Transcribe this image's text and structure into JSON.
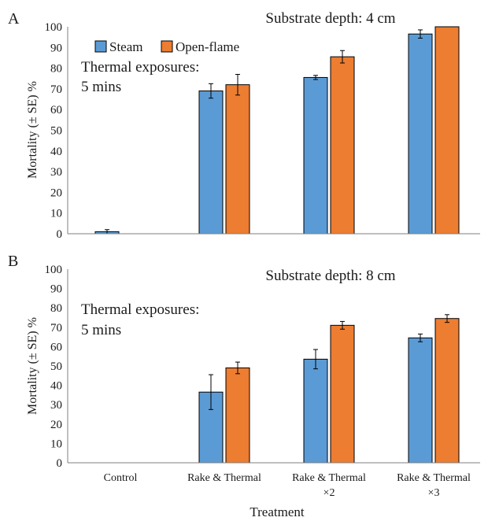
{
  "colors": {
    "steam": "#5B9BD5",
    "open_flame": "#ED7D31",
    "axis": "#7f7f7f",
    "bar_edge": "#000000"
  },
  "legend": {
    "steam": "Steam",
    "open_flame": "Open-flame"
  },
  "xlabel": "Treatment",
  "categories": [
    {
      "line1": "Control",
      "line2": ""
    },
    {
      "line1": "Rake & Thermal",
      "line2": ""
    },
    {
      "line1": "Rake & Thermal",
      "line2": "×2"
    },
    {
      "line1": "Rake & Thermal",
      "line2": "×3"
    }
  ],
  "chart_data": [
    {
      "type": "bar",
      "panel": "A",
      "subtitle": "Substrate depth: 4 cm",
      "note_line1": "Thermal exposures:",
      "note_line2": "5 mins",
      "ylabel": "Mortality (± SE) %",
      "ylim": [
        0,
        100
      ],
      "yticks": [
        "0",
        "10",
        "20",
        "30",
        "40",
        "50",
        "60",
        "70",
        "80",
        "90",
        "100"
      ],
      "categories": [
        "Control",
        "Rake & Thermal",
        "Rake & Thermal ×2",
        "Rake & Thermal ×3"
      ],
      "series": [
        {
          "name": "Steam",
          "values": [
            1,
            69,
            75.5,
            96.5
          ],
          "errors": [
            1,
            3.5,
            1,
            2
          ]
        },
        {
          "name": "Open-flame",
          "values": [
            0,
            72,
            85.5,
            100
          ],
          "errors": [
            0,
            5,
            3,
            0
          ]
        }
      ],
      "legend_position": "top-left",
      "grid": false
    },
    {
      "type": "bar",
      "panel": "B",
      "subtitle": "Substrate depth: 8 cm",
      "note_line1": "Thermal exposures:",
      "note_line2": "5 mins",
      "ylabel": "Mortality (± SE) %",
      "ylim": [
        0,
        100
      ],
      "yticks": [
        "0",
        "10",
        "20",
        "30",
        "40",
        "50",
        "60",
        "70",
        "80",
        "90",
        "100"
      ],
      "categories": [
        "Control",
        "Rake & Thermal",
        "Rake & Thermal ×2",
        "Rake & Thermal ×3"
      ],
      "series": [
        {
          "name": "Steam",
          "values": [
            0,
            36.5,
            53.5,
            64.5
          ],
          "errors": [
            0,
            9,
            5,
            2
          ]
        },
        {
          "name": "Open-flame",
          "values": [
            0,
            49,
            71,
            74.5
          ],
          "errors": [
            0,
            3,
            2,
            2
          ]
        }
      ],
      "grid": false
    }
  ]
}
